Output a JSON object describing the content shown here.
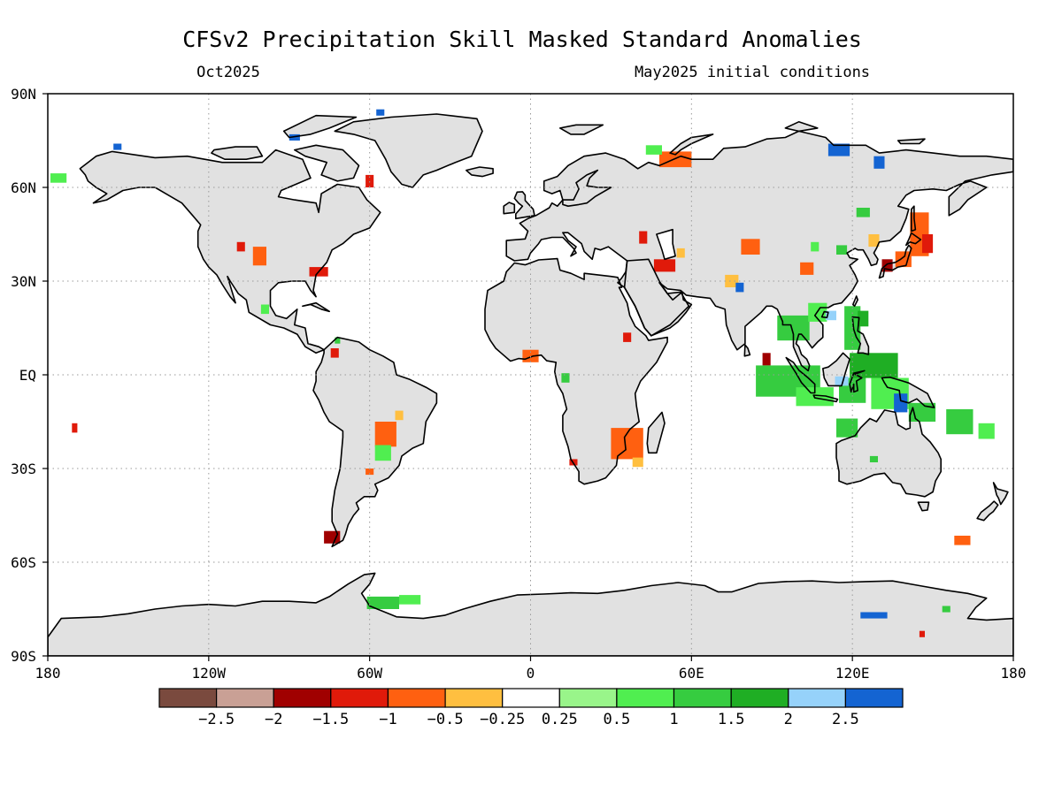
{
  "title": "CFSv2 Precipitation Skill Masked Standard Anomalies",
  "valid_month": "Oct2025",
  "init_label": "May2025 initial conditions",
  "map": {
    "lon_range": [
      -180,
      180
    ],
    "lat_range": [
      -90,
      90
    ],
    "grid": "dotted",
    "land_color": "#e1e1e1",
    "ocean_color": "#ffffff",
    "coast_color": "#000000",
    "lat_ticks": [
      {
        "lat": 90,
        "label": "90N"
      },
      {
        "lat": 60,
        "label": "60N"
      },
      {
        "lat": 30,
        "label": "30N"
      },
      {
        "lat": 0,
        "label": "EQ"
      },
      {
        "lat": -30,
        "label": "30S"
      },
      {
        "lat": -60,
        "label": "60S"
      },
      {
        "lat": -90,
        "label": "90S"
      }
    ],
    "lon_ticks": [
      {
        "lon": -180,
        "label": "180"
      },
      {
        "lon": -120,
        "label": "120W"
      },
      {
        "lon": -60,
        "label": "60W"
      },
      {
        "lon": 0,
        "label": "0"
      },
      {
        "lon": 60,
        "label": "60E"
      },
      {
        "lon": 120,
        "label": "120E"
      },
      {
        "lon": 180,
        "label": "180"
      }
    ]
  },
  "colorbar": {
    "colors": [
      "#7a4a3e",
      "#c9a095",
      "#a00000",
      "#e01a0a",
      "#ff6010",
      "#ffbf40",
      "#ffffff",
      "#99f58a",
      "#50ee50",
      "#36cc40",
      "#1fae24",
      "#96d2fa",
      "#1464d2"
    ],
    "labels": [
      "−2.5",
      "−2",
      "−1.5",
      "−1",
      "−0.5",
      "−0.25",
      "0.25",
      "0.5",
      "1",
      "1.5",
      "2",
      "2.5"
    ]
  },
  "anomalies": [
    {
      "lon": 145,
      "lat": 45,
      "w": 7,
      "h": 14,
      "color": "#ff6010"
    },
    {
      "lon": 148,
      "lat": 42,
      "w": 4,
      "h": 6,
      "color": "#e01a0a"
    },
    {
      "lon": 139,
      "lat": 37,
      "w": 6,
      "h": 5,
      "color": "#ff6010"
    },
    {
      "lon": 133,
      "lat": 35,
      "w": 4,
      "h": 4,
      "color": "#a00000"
    },
    {
      "lon": 103,
      "lat": 34,
      "w": 5,
      "h": 4,
      "color": "#ff6010"
    },
    {
      "lon": 116,
      "lat": 40,
      "w": 4,
      "h": 3,
      "color": "#36cc40"
    },
    {
      "lon": 124,
      "lat": 52,
      "w": 5,
      "h": 3,
      "color": "#36cc40"
    },
    {
      "lon": 128,
      "lat": 43,
      "w": 4,
      "h": 4,
      "color": "#ffbf40"
    },
    {
      "lon": 106,
      "lat": 41,
      "w": 3,
      "h": 3,
      "color": "#50ee50"
    },
    {
      "lon": 82,
      "lat": 41,
      "w": 7,
      "h": 5,
      "color": "#ff6010"
    },
    {
      "lon": 50,
      "lat": 35,
      "w": 8,
      "h": 4,
      "color": "#e01a0a"
    },
    {
      "lon": 56,
      "lat": 39,
      "w": 3,
      "h": 3,
      "color": "#ffbf40"
    },
    {
      "lon": 75,
      "lat": 30,
      "w": 5,
      "h": 4,
      "color": "#ffbf40"
    },
    {
      "lon": 78,
      "lat": 28,
      "w": 3,
      "h": 3,
      "color": "#1464d2"
    },
    {
      "lon": 42,
      "lat": 44,
      "w": 3,
      "h": 4,
      "color": "#e01a0a"
    },
    {
      "lon": 88,
      "lat": 5,
      "w": 3,
      "h": 4,
      "color": "#a00000"
    },
    {
      "lon": 54,
      "lat": 69,
      "w": 12,
      "h": 5,
      "color": "#ff6010"
    },
    {
      "lon": 46,
      "lat": 72,
      "w": 6,
      "h": 3,
      "color": "#50ee50"
    },
    {
      "lon": 115,
      "lat": 72,
      "w": 8,
      "h": 4,
      "color": "#1464d2"
    },
    {
      "lon": 130,
      "lat": 68,
      "w": 4,
      "h": 4,
      "color": "#1464d2"
    },
    {
      "lon": 98,
      "lat": 15,
      "w": 12,
      "h": 8,
      "color": "#36cc40"
    },
    {
      "lon": 107,
      "lat": 20,
      "w": 7,
      "h": 6,
      "color": "#50ee50"
    },
    {
      "lon": 120,
      "lat": 15,
      "w": 6,
      "h": 14,
      "color": "#36cc40"
    },
    {
      "lon": 124,
      "lat": 18,
      "w": 4,
      "h": 5,
      "color": "#1fae24"
    },
    {
      "lon": 112,
      "lat": 19,
      "w": 4,
      "h": 3,
      "color": "#96d2fa"
    },
    {
      "lon": 96,
      "lat": -2,
      "w": 24,
      "h": 10,
      "color": "#36cc40"
    },
    {
      "lon": 106,
      "lat": -7,
      "w": 14,
      "h": 6,
      "color": "#50ee50"
    },
    {
      "lon": 120,
      "lat": -5,
      "w": 10,
      "h": 8,
      "color": "#36cc40"
    },
    {
      "lon": 116,
      "lat": -2,
      "w": 5,
      "h": 3,
      "color": "#96d2fa"
    },
    {
      "lon": 128,
      "lat": 3,
      "w": 18,
      "h": 8,
      "color": "#1fae24"
    },
    {
      "lon": 134,
      "lat": -6,
      "w": 14,
      "h": 10,
      "color": "#50ee50"
    },
    {
      "lon": 138,
      "lat": -9,
      "w": 5,
      "h": 6,
      "color": "#1464d2"
    },
    {
      "lon": 146,
      "lat": -12,
      "w": 10,
      "h": 6,
      "color": "#36cc40"
    },
    {
      "lon": 118,
      "lat": -17,
      "w": 8,
      "h": 6,
      "color": "#36cc40"
    },
    {
      "lon": 160,
      "lat": -15,
      "w": 10,
      "h": 8,
      "color": "#36cc40"
    },
    {
      "lon": 170,
      "lat": -18,
      "w": 6,
      "h": 5,
      "color": "#50ee50"
    },
    {
      "lon": 128,
      "lat": -27,
      "w": 3,
      "h": 2,
      "color": "#36cc40"
    },
    {
      "lon": 161,
      "lat": -53,
      "w": 6,
      "h": 3,
      "color": "#ff6010"
    },
    {
      "lon": 36,
      "lat": -22,
      "w": 12,
      "h": 10,
      "color": "#ff6010"
    },
    {
      "lon": 40,
      "lat": -28,
      "w": 4,
      "h": 3,
      "color": "#ffbf40"
    },
    {
      "lon": 0,
      "lat": 6,
      "w": 6,
      "h": 4,
      "color": "#ff6010"
    },
    {
      "lon": 36,
      "lat": 12,
      "w": 3,
      "h": 3,
      "color": "#e01a0a"
    },
    {
      "lon": 13,
      "lat": -1,
      "w": 3,
      "h": 3,
      "color": "#36cc40"
    },
    {
      "lon": 16,
      "lat": -28,
      "w": 3,
      "h": 2,
      "color": "#e01a0a"
    },
    {
      "lon": -54,
      "lat": -19,
      "w": 8,
      "h": 8,
      "color": "#ff6010"
    },
    {
      "lon": -55,
      "lat": -25,
      "w": 6,
      "h": 5,
      "color": "#50ee50"
    },
    {
      "lon": -49,
      "lat": -13,
      "w": 3,
      "h": 3,
      "color": "#ffbf40"
    },
    {
      "lon": -74,
      "lat": -52,
      "w": 6,
      "h": 4,
      "color": "#a00000"
    },
    {
      "lon": -60,
      "lat": -31,
      "w": 3,
      "h": 2,
      "color": "#ff6010"
    },
    {
      "lon": -101,
      "lat": 38,
      "w": 5,
      "h": 6,
      "color": "#ff6010"
    },
    {
      "lon": -108,
      "lat": 41,
      "w": 3,
      "h": 3,
      "color": "#e01a0a"
    },
    {
      "lon": -79,
      "lat": 33,
      "w": 7,
      "h": 3,
      "color": "#e01a0a"
    },
    {
      "lon": -60,
      "lat": 62,
      "w": 3,
      "h": 4,
      "color": "#e01a0a"
    },
    {
      "lon": -99,
      "lat": 21,
      "w": 3,
      "h": 3,
      "color": "#50ee50"
    },
    {
      "lon": -73,
      "lat": 7,
      "w": 3,
      "h": 3,
      "color": "#e01a0a"
    },
    {
      "lon": -72,
      "lat": 11,
      "w": 2,
      "h": 2,
      "color": "#36cc40"
    },
    {
      "lon": -176,
      "lat": 63,
      "w": 6,
      "h": 3,
      "color": "#50ee50"
    },
    {
      "lon": -88,
      "lat": 76,
      "w": 4,
      "h": 2,
      "color": "#1464d2"
    },
    {
      "lon": -154,
      "lat": 73,
      "w": 3,
      "h": 2,
      "color": "#1464d2"
    },
    {
      "lon": -56,
      "lat": 84,
      "w": 3,
      "h": 2,
      "color": "#1464d2"
    },
    {
      "lon": -55,
      "lat": -73,
      "w": 12,
      "h": 4,
      "color": "#36cc40"
    },
    {
      "lon": -45,
      "lat": -72,
      "w": 8,
      "h": 3,
      "color": "#50ee50"
    },
    {
      "lon": 128,
      "lat": -77,
      "w": 10,
      "h": 2,
      "color": "#1464d2"
    },
    {
      "lon": 155,
      "lat": -75,
      "w": 3,
      "h": 2,
      "color": "#36cc40"
    },
    {
      "lon": 146,
      "lat": -83,
      "w": 2,
      "h": 2,
      "color": "#e01a0a"
    },
    {
      "lon": -170,
      "lat": -17,
      "w": 2,
      "h": 3,
      "color": "#e01a0a"
    }
  ]
}
